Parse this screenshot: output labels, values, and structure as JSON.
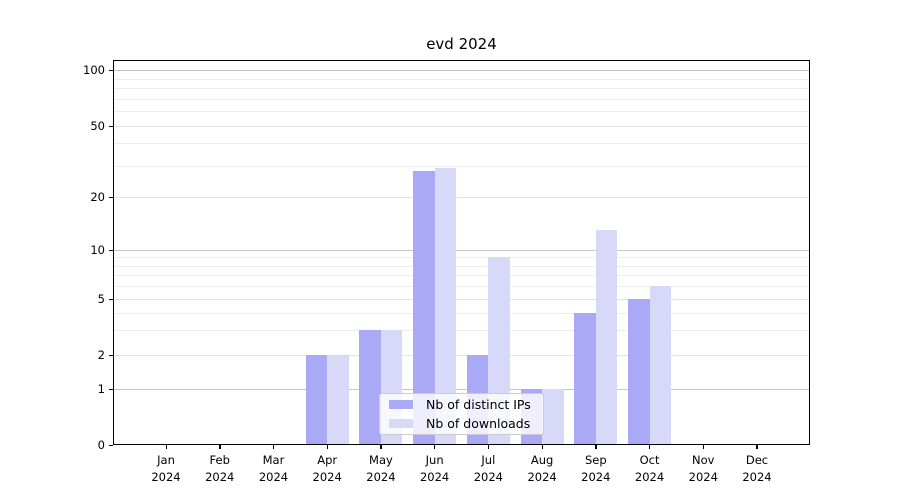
{
  "chart_data": {
    "type": "bar",
    "title": "evd 2024",
    "categories": [
      "Jan",
      "Feb",
      "Mar",
      "Apr",
      "May",
      "Jun",
      "Jul",
      "Aug",
      "Sep",
      "Oct",
      "Nov",
      "Dec"
    ],
    "year_label": "2024",
    "series": [
      {
        "name": "Nb of distinct IPs",
        "color": "#a9a9f6",
        "values": [
          0,
          0,
          0,
          2,
          3,
          28,
          2,
          1,
          4,
          5,
          0,
          0
        ]
      },
      {
        "name": "Nb of downloads",
        "color": "#d8d8f9",
        "values": [
          0,
          0,
          0,
          2,
          3,
          29,
          9,
          1,
          13,
          6,
          0,
          0
        ]
      }
    ],
    "y_axis": {
      "scale": "log-like",
      "tick_labels": [
        100,
        50,
        20,
        10,
        5,
        2,
        1,
        0
      ],
      "minor_gridlines": [
        3,
        4,
        6,
        7,
        8,
        9,
        30,
        40,
        60,
        70,
        80,
        90
      ],
      "ylim": [
        0,
        113
      ]
    },
    "x_axis": {
      "label_line2": "2024"
    },
    "legend": {
      "position": "lower center",
      "entries": [
        "Nb of distinct IPs",
        "Nb of downloads"
      ]
    },
    "grid": true,
    "background": "#ffffff"
  }
}
